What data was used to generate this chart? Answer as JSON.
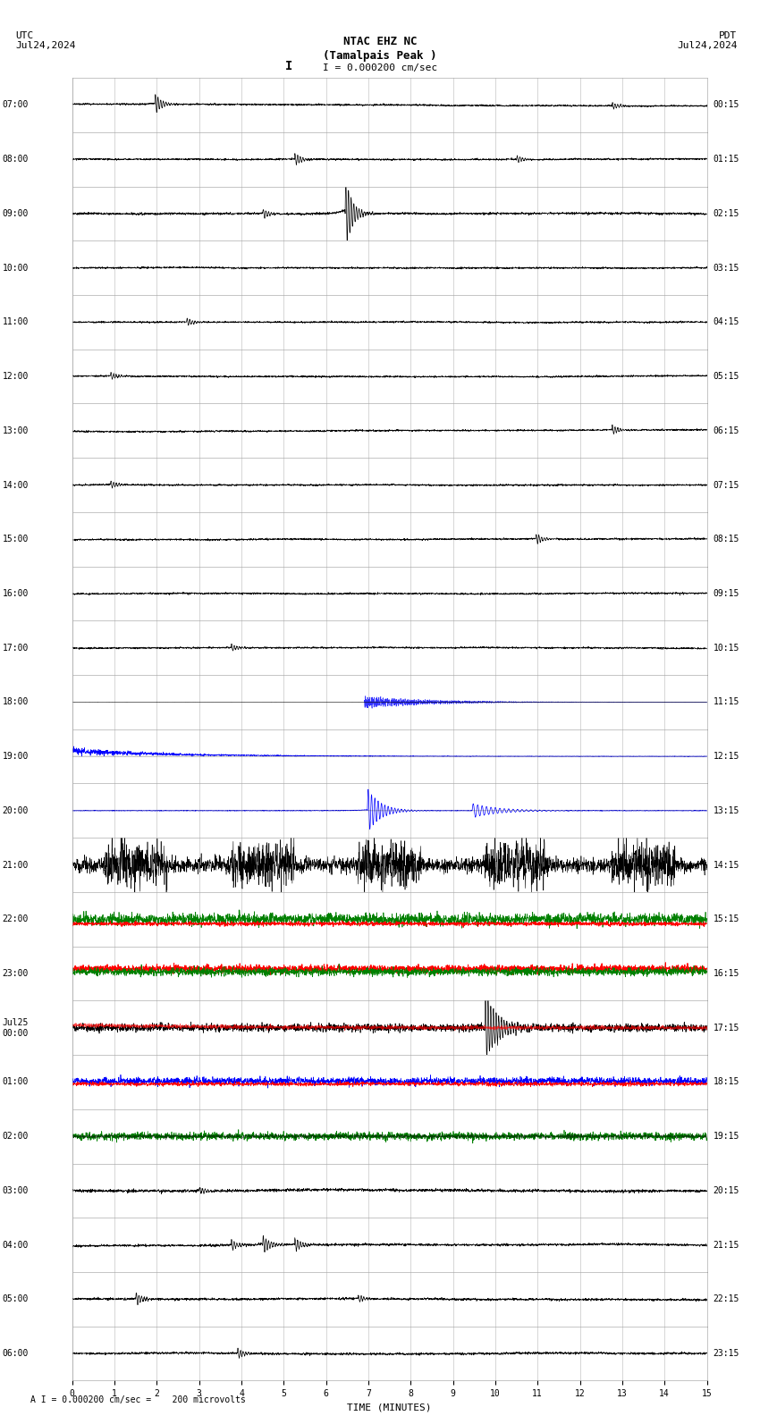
{
  "title_line1": "NTAC EHZ NC",
  "title_line2": "(Tamalpais Peak )",
  "scale_label": "I = 0.000200 cm/sec",
  "bottom_label": "A I = 0.000200 cm/sec =    200 microvolts",
  "utc_label": "UTC",
  "pdt_label": "PDT",
  "date_label": "Jul24,2024",
  "date_label2": "Jul25",
  "xlabel": "TIME (MINUTES)",
  "left_times": [
    "07:00",
    "08:00",
    "09:00",
    "10:00",
    "11:00",
    "12:00",
    "13:00",
    "14:00",
    "15:00",
    "16:00",
    "17:00",
    "18:00",
    "19:00",
    "20:00",
    "21:00",
    "22:00",
    "23:00",
    "Jul25\n00:00",
    "01:00",
    "02:00",
    "03:00",
    "04:00",
    "05:00",
    "06:00"
  ],
  "right_times": [
    "00:15",
    "01:15",
    "02:15",
    "03:15",
    "04:15",
    "05:15",
    "06:15",
    "07:15",
    "08:15",
    "09:15",
    "10:15",
    "11:15",
    "12:15",
    "13:15",
    "14:15",
    "15:15",
    "16:15",
    "17:15",
    "18:15",
    "19:15",
    "20:15",
    "21:15",
    "22:15",
    "23:15"
  ],
  "n_rows": 24,
  "n_minutes": 15,
  "bg_color": "#ffffff",
  "grid_color": "#999999",
  "trace_color_black": "#000000",
  "trace_color_red": "#ff0000",
  "trace_color_blue": "#0000ff",
  "trace_color_green": "#008000",
  "figwidth": 8.5,
  "figheight": 15.84
}
